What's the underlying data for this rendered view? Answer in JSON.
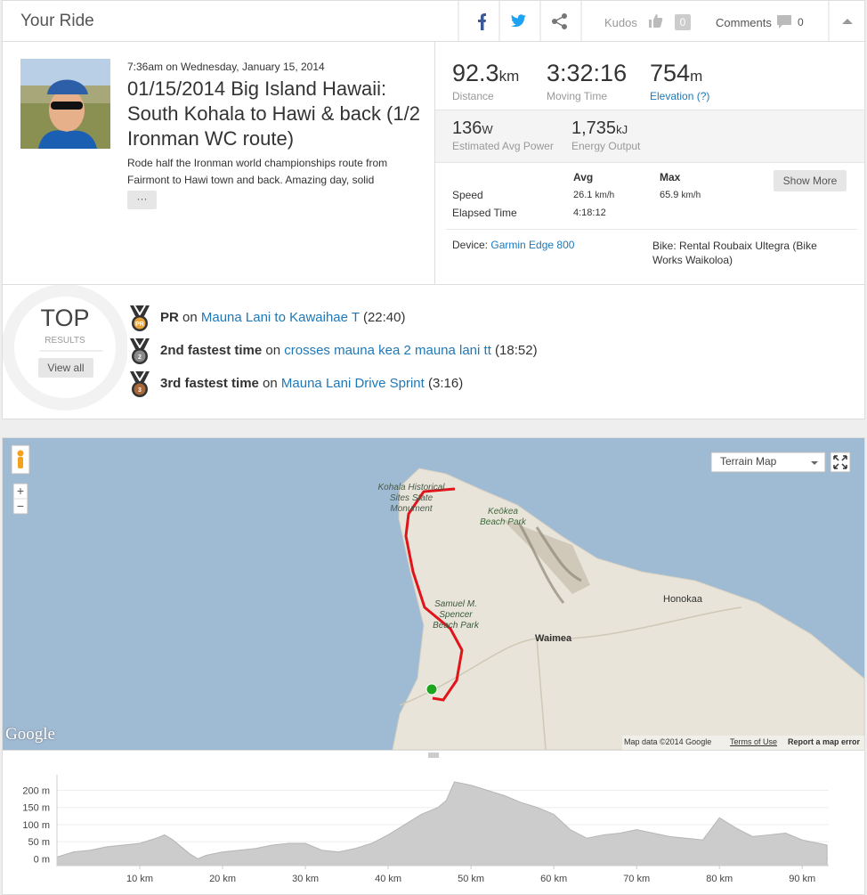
{
  "header": {
    "title": "Your Ride",
    "kudos_label": "Kudos",
    "kudos_count": 0,
    "comments_label": "Comments",
    "comments_count": 0
  },
  "activity": {
    "datetime": "7:36am on Wednesday, January 15, 2014",
    "title": "01/15/2014 Big Island Hawaii: South Kohala to Hawi & back (1/2 Ironman WC route)",
    "description": "Rode half the Ironman world championships route from Fairmont to Hawi town and back. Amazing day, solid",
    "more_button": "···"
  },
  "stats": {
    "primary": [
      {
        "value": 92.3,
        "unit": "km",
        "label": "Distance"
      },
      {
        "value": "3:32:16",
        "label": "Moving Time"
      },
      {
        "value": 754,
        "unit": "m",
        "label": "Elevation (?)"
      }
    ],
    "secondary": [
      {
        "value": 136,
        "unit": "W",
        "label": "Estimated Avg Power"
      },
      {
        "value": "1,735",
        "unit": "kJ",
        "label": "Energy Output"
      }
    ],
    "table": {
      "headers": [
        "Avg",
        "Max"
      ],
      "rows": [
        {
          "label": "Speed",
          "avg": 26.1,
          "avg_unit": "km/h",
          "max": 65.9,
          "max_unit": "km/h"
        },
        {
          "label": "Elapsed Time",
          "avg": "4:18:12"
        }
      ]
    },
    "show_more": "Show More",
    "device_label": "Device:",
    "device": "Garmin Edge 800",
    "bike": "Bike: Rental Roubaix Ultegra (Bike Works Waikoloa)"
  },
  "top_results": {
    "title": "TOP",
    "subtitle": "RESULTS",
    "view_all": "View all",
    "items": [
      {
        "badge": "PR",
        "achievement": "PR",
        "connector": "on",
        "segment": "Mauna Lani to Kawaihae T",
        "time": "(22:40)"
      },
      {
        "badge": "2",
        "achievement": "2nd fastest time",
        "connector": "on",
        "segment": "crosses mauna kea 2 mauna lani tt",
        "time": "(18:52)"
      },
      {
        "badge": "3",
        "achievement": "3rd fastest time",
        "connector": "on",
        "segment": "Mauna Lani Drive Sprint",
        "time": "(3:16)"
      }
    ]
  },
  "map": {
    "map_type": "Terrain Map",
    "zoom_in": "+",
    "zoom_out": "−",
    "labels": [
      "Kohala Historical Sites State Monument",
      "Keōkea Beach Park",
      "Honokaa",
      "Samuel M. Spencer Beach Park",
      "Waimea"
    ],
    "logo": "Google",
    "attribution": "Map data ©2014 Google",
    "terms": "Terms of Use",
    "report": "Report a map error"
  },
  "chart_data": {
    "type": "area",
    "x": [
      0,
      2,
      4,
      6,
      8,
      10,
      12,
      13,
      14,
      16,
      17,
      18,
      20,
      22,
      24,
      26,
      28,
      30,
      32,
      34,
      36,
      38,
      40,
      42,
      44,
      46,
      47,
      48,
      50,
      52,
      54,
      56,
      58,
      60,
      62,
      64,
      66,
      68,
      70,
      72,
      74,
      76,
      78,
      80,
      82,
      84,
      86,
      88,
      90,
      92,
      93
    ],
    "values": [
      5,
      20,
      25,
      35,
      40,
      45,
      60,
      70,
      55,
      15,
      0,
      10,
      20,
      25,
      30,
      40,
      45,
      45,
      25,
      20,
      30,
      45,
      70,
      100,
      130,
      150,
      170,
      225,
      215,
      200,
      185,
      165,
      150,
      130,
      85,
      60,
      70,
      75,
      85,
      75,
      65,
      60,
      55,
      120,
      90,
      65,
      70,
      75,
      55,
      45,
      40
    ],
    "color": "#cccccc",
    "xlim": [
      0,
      93.2
    ],
    "ylim": [
      -20,
      230
    ],
    "xticks": [
      {
        "value": 10,
        "label": "10 km"
      },
      {
        "value": 20,
        "label": "20 km"
      },
      {
        "value": 30,
        "label": "30 km"
      },
      {
        "value": 40,
        "label": "40 km"
      },
      {
        "value": 50,
        "label": "50 km"
      },
      {
        "value": 60,
        "label": "60 km"
      },
      {
        "value": 70,
        "label": "70 km"
      },
      {
        "value": 80,
        "label": "80 km"
      },
      {
        "value": 90,
        "label": "90 km"
      }
    ],
    "yticks": [
      {
        "value": 0,
        "label": "0 m"
      },
      {
        "value": 50,
        "label": "50 m"
      },
      {
        "value": 100,
        "label": "100 m"
      },
      {
        "value": 150,
        "label": "150 m"
      },
      {
        "value": 200,
        "label": "200 m"
      }
    ],
    "grid": true
  }
}
